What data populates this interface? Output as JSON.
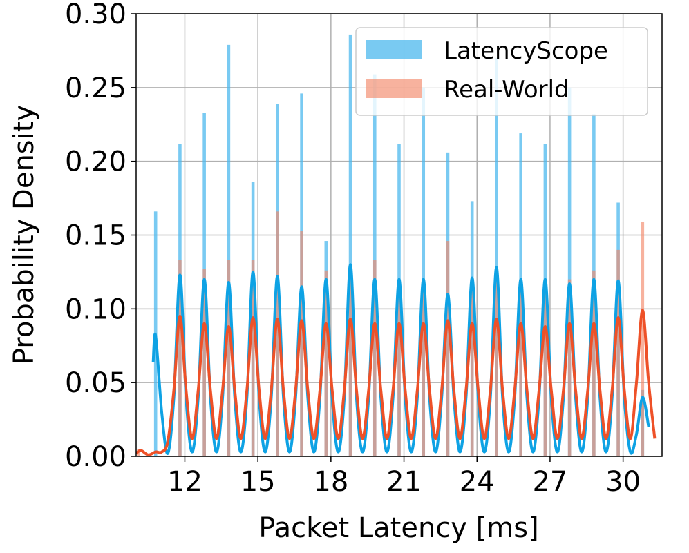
{
  "chart_data": {
    "type": "histogram",
    "xlabel": "Packet Latency [ms]",
    "ylabel": "Probability Density",
    "xlim": [
      10,
      31.6
    ],
    "ylim": [
      0,
      0.3
    ],
    "xticks": [
      12,
      15,
      18,
      21,
      24,
      27,
      30
    ],
    "yticks": [
      {
        "value": 0,
        "label": "0.00"
      },
      {
        "value": 0.05,
        "label": "0.05"
      },
      {
        "value": 0.1,
        "label": "0.10"
      },
      {
        "value": 0.15,
        "label": "0.15"
      },
      {
        "value": 0.2,
        "label": "0.20"
      },
      {
        "value": 0.25,
        "label": "0.25"
      },
      {
        "value": 0.3,
        "label": "0.30"
      }
    ],
    "grid": true,
    "legend": "upper right",
    "series": [
      {
        "name": "LatencyScope",
        "color": "#4cb8ee",
        "line_color": "#0ea2e4",
        "x": [
          10.8,
          11.8,
          12.8,
          13.8,
          14.8,
          15.8,
          16.8,
          17.8,
          18.8,
          19.8,
          20.8,
          21.8,
          22.8,
          23.8,
          24.8,
          25.8,
          26.8,
          27.8,
          28.8,
          29.8,
          30.8
        ],
        "values": [
          0.166,
          0.212,
          0.233,
          0.279,
          0.186,
          0.239,
          0.246,
          0.146,
          0.286,
          0.259,
          0.212,
          0.25,
          0.206,
          0.173,
          0.27,
          0.219,
          0.212,
          0.25,
          0.232,
          0.172,
          0.045
        ],
        "kde": {
          "x": [
            10.7,
            10.8,
            11.05,
            11.3,
            11.55,
            11.8,
            12.05,
            12.3,
            12.55,
            12.8,
            13.05,
            13.3,
            13.55,
            13.8,
            14.05,
            14.3,
            14.55,
            14.8,
            15.05,
            15.3,
            15.55,
            15.8,
            16.05,
            16.3,
            16.55,
            16.8,
            17.05,
            17.3,
            17.55,
            17.8,
            18.05,
            18.3,
            18.55,
            18.8,
            19.05,
            19.3,
            19.55,
            19.8,
            20.05,
            20.3,
            20.55,
            20.8,
            21.05,
            21.3,
            21.55,
            21.8,
            22.05,
            22.3,
            22.55,
            22.8,
            23.05,
            23.3,
            23.55,
            23.8,
            24.05,
            24.3,
            24.55,
            24.8,
            25.05,
            25.3,
            25.55,
            25.8,
            26.05,
            26.3,
            26.55,
            26.8,
            27.05,
            27.3,
            27.55,
            27.8,
            28.05,
            28.3,
            28.55,
            28.8,
            29.05,
            29.3,
            29.55,
            29.8,
            30.05,
            30.3,
            30.55,
            30.8,
            31.05
          ],
          "values": [
            0.064,
            0.082,
            0.03,
            0.002,
            0.04,
            0.123,
            0.04,
            0.003,
            0.04,
            0.12,
            0.04,
            0.003,
            0.04,
            0.118,
            0.04,
            0.003,
            0.04,
            0.125,
            0.04,
            0.003,
            0.04,
            0.122,
            0.04,
            0.003,
            0.04,
            0.115,
            0.04,
            0.003,
            0.04,
            0.12,
            0.04,
            0.003,
            0.04,
            0.13,
            0.04,
            0.003,
            0.04,
            0.12,
            0.04,
            0.003,
            0.04,
            0.12,
            0.04,
            0.003,
            0.04,
            0.12,
            0.04,
            0.003,
            0.04,
            0.11,
            0.04,
            0.003,
            0.04,
            0.121,
            0.04,
            0.003,
            0.04,
            0.128,
            0.04,
            0.003,
            0.04,
            0.12,
            0.04,
            0.003,
            0.04,
            0.12,
            0.04,
            0.003,
            0.04,
            0.117,
            0.04,
            0.003,
            0.04,
            0.12,
            0.04,
            0.003,
            0.04,
            0.119,
            0.04,
            0.003,
            0.015,
            0.04,
            0.02
          ]
        }
      },
      {
        "name": "Real-World",
        "color": "#f3886a",
        "line_color": "#ee5128",
        "x": [
          10.1,
          11.8,
          12.8,
          13.8,
          14.8,
          15.8,
          16.8,
          17.8,
          18.8,
          19.8,
          20.8,
          21.8,
          22.8,
          23.8,
          24.8,
          25.8,
          26.8,
          27.8,
          28.8,
          29.8,
          30.8
        ],
        "values": [
          0.005,
          0.133,
          0.127,
          0.133,
          0.133,
          0.166,
          0.153,
          0.126,
          0.12,
          0.133,
          0.12,
          0.12,
          0.146,
          0.12,
          0.12,
          0.12,
          0.12,
          0.12,
          0.126,
          0.14,
          0.159
        ],
        "kde": {
          "x": [
            10.0,
            10.2,
            10.5,
            10.8,
            11.05,
            11.3,
            11.55,
            11.8,
            12.05,
            12.3,
            12.55,
            12.8,
            13.05,
            13.3,
            13.55,
            13.8,
            14.05,
            14.3,
            14.55,
            14.8,
            15.05,
            15.3,
            15.55,
            15.8,
            16.05,
            16.3,
            16.55,
            16.8,
            17.05,
            17.3,
            17.55,
            17.8,
            18.05,
            18.3,
            18.55,
            18.8,
            19.05,
            19.3,
            19.55,
            19.8,
            20.05,
            20.3,
            20.55,
            20.8,
            21.05,
            21.3,
            21.55,
            21.8,
            22.05,
            22.3,
            22.55,
            22.8,
            23.05,
            23.3,
            23.55,
            23.8,
            24.05,
            24.3,
            24.55,
            24.8,
            25.05,
            25.3,
            25.55,
            25.8,
            26.05,
            26.3,
            26.55,
            26.8,
            27.05,
            27.3,
            27.55,
            27.8,
            28.05,
            28.3,
            28.55,
            28.8,
            29.05,
            29.3,
            29.55,
            29.8,
            30.05,
            30.3,
            30.55,
            30.8,
            31.05,
            31.3
          ],
          "values": [
            0.002,
            0.004,
            0.001,
            0.003,
            0.003,
            0.01,
            0.045,
            0.095,
            0.045,
            0.012,
            0.045,
            0.09,
            0.045,
            0.012,
            0.045,
            0.088,
            0.045,
            0.012,
            0.045,
            0.094,
            0.045,
            0.012,
            0.045,
            0.093,
            0.045,
            0.012,
            0.045,
            0.092,
            0.045,
            0.012,
            0.045,
            0.09,
            0.045,
            0.012,
            0.045,
            0.093,
            0.045,
            0.012,
            0.045,
            0.09,
            0.045,
            0.012,
            0.045,
            0.09,
            0.045,
            0.012,
            0.045,
            0.09,
            0.045,
            0.012,
            0.045,
            0.092,
            0.045,
            0.012,
            0.045,
            0.09,
            0.045,
            0.012,
            0.045,
            0.093,
            0.045,
            0.012,
            0.045,
            0.09,
            0.045,
            0.012,
            0.045,
            0.088,
            0.045,
            0.012,
            0.045,
            0.09,
            0.045,
            0.012,
            0.045,
            0.09,
            0.045,
            0.012,
            0.045,
            0.094,
            0.045,
            0.012,
            0.05,
            0.099,
            0.05,
            0.012
          ]
        }
      }
    ]
  }
}
